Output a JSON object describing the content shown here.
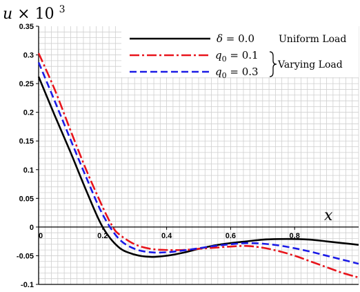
{
  "chart_data": {
    "type": "line",
    "title": "",
    "ylabel_var": "u",
    "ylabel_scale": "× 10",
    "ylabel_exp": "3",
    "xlabel": "x",
    "xlim": [
      0,
      1.0
    ],
    "ylim": [
      -0.1,
      0.35
    ],
    "grid": true,
    "legend_position": "top-right",
    "x_ticks": [
      {
        "value": 0,
        "label": "0"
      },
      {
        "value": 0.2,
        "label": "0.2"
      },
      {
        "value": 0.4,
        "label": "0.4"
      },
      {
        "value": 0.6,
        "label": "0.6"
      },
      {
        "value": 0.8,
        "label": "0.8"
      }
    ],
    "y_ticks": [
      {
        "value": 0.35,
        "label": "0.35"
      },
      {
        "value": 0.3,
        "label": "0.3"
      },
      {
        "value": 0.25,
        "label": "0.25"
      },
      {
        "value": 0.2,
        "label": "0.2"
      },
      {
        "value": 0.15,
        "label": "0.15"
      },
      {
        "value": 0.1,
        "label": "0.1"
      },
      {
        "value": 0.05,
        "label": "0.05"
      },
      {
        "value": 0,
        "label": "0"
      },
      {
        "value": -0.05,
        "label": "-0.05"
      },
      {
        "value": -0.1,
        "label": "-0.1"
      }
    ],
    "legend": {
      "items": [
        {
          "label_var": "δ",
          "label_val": " = 0.0"
        },
        {
          "label_var": "q",
          "label_sub": "0",
          "label_val": " = 0.1"
        },
        {
          "label_var": "q",
          "label_sub": "0",
          "label_val": " = 0.3"
        }
      ],
      "group_uniform": "Uniform Load",
      "group_varying": "Varying Load"
    },
    "series": [
      {
        "color": "#000000",
        "dash": "solid",
        "points": [
          [
            0,
            0.262
          ],
          [
            0.05,
            0.195
          ],
          [
            0.1,
            0.13
          ],
          [
            0.15,
            0.062
          ],
          [
            0.2,
            0.0
          ],
          [
            0.25,
            -0.035
          ],
          [
            0.3,
            -0.048
          ],
          [
            0.35,
            -0.052
          ],
          [
            0.4,
            -0.05
          ],
          [
            0.45,
            -0.045
          ],
          [
            0.5,
            -0.038
          ],
          [
            0.55,
            -0.032
          ],
          [
            0.6,
            -0.028
          ],
          [
            0.65,
            -0.025
          ],
          [
            0.7,
            -0.022
          ],
          [
            0.75,
            -0.021
          ],
          [
            0.8,
            -0.021
          ],
          [
            0.85,
            -0.022
          ],
          [
            0.9,
            -0.025
          ],
          [
            0.95,
            -0.028
          ],
          [
            1.0,
            -0.031
          ]
        ]
      },
      {
        "color": "#e8141b",
        "dash": "dashdot",
        "points": [
          [
            0,
            0.303
          ],
          [
            0.05,
            0.24
          ],
          [
            0.1,
            0.168
          ],
          [
            0.15,
            0.098
          ],
          [
            0.2,
            0.035
          ],
          [
            0.23,
            0.002
          ],
          [
            0.25,
            -0.012
          ],
          [
            0.3,
            -0.03
          ],
          [
            0.35,
            -0.038
          ],
          [
            0.4,
            -0.04
          ],
          [
            0.45,
            -0.04
          ],
          [
            0.5,
            -0.038
          ],
          [
            0.55,
            -0.036
          ],
          [
            0.6,
            -0.034
          ],
          [
            0.65,
            -0.033
          ],
          [
            0.7,
            -0.036
          ],
          [
            0.75,
            -0.042
          ],
          [
            0.8,
            -0.05
          ],
          [
            0.85,
            -0.06
          ],
          [
            0.9,
            -0.07
          ],
          [
            0.95,
            -0.08
          ],
          [
            1.0,
            -0.088
          ]
        ]
      },
      {
        "color": "#1a1ae6",
        "dash": "dashed",
        "points": [
          [
            0,
            0.287
          ],
          [
            0.05,
            0.22
          ],
          [
            0.1,
            0.152
          ],
          [
            0.15,
            0.085
          ],
          [
            0.2,
            0.022
          ],
          [
            0.25,
            -0.02
          ],
          [
            0.3,
            -0.038
          ],
          [
            0.35,
            -0.044
          ],
          [
            0.4,
            -0.044
          ],
          [
            0.45,
            -0.041
          ],
          [
            0.5,
            -0.037
          ],
          [
            0.55,
            -0.033
          ],
          [
            0.6,
            -0.03
          ],
          [
            0.65,
            -0.028
          ],
          [
            0.7,
            -0.029
          ],
          [
            0.75,
            -0.032
          ],
          [
            0.8,
            -0.037
          ],
          [
            0.85,
            -0.043
          ],
          [
            0.9,
            -0.05
          ],
          [
            0.95,
            -0.057
          ],
          [
            1.0,
            -0.064
          ]
        ]
      }
    ]
  }
}
